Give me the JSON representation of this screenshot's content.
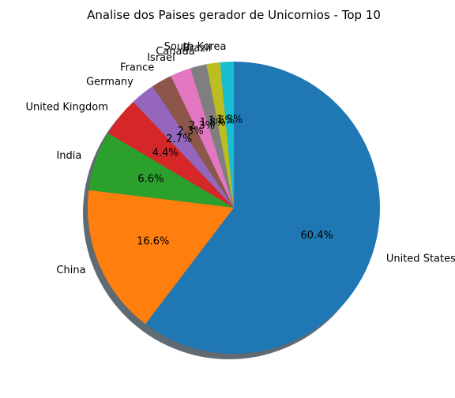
{
  "chart_data": {
    "type": "pie",
    "title": "Analise dos Paises gerador de Unicornios - Top 10",
    "labels": [
      "United States",
      "China",
      "India",
      "United Kingdom",
      "Germany",
      "France",
      "Israel",
      "Canada",
      "Brazil",
      "South Korea"
    ],
    "values": [
      60.4,
      16.6,
      6.6,
      4.4,
      2.7,
      2.3,
      2.3,
      1.8,
      1.5,
      1.5
    ],
    "value_labels": [
      "60.4%",
      "16.6%",
      "6.6%",
      "4.4%",
      "2.7%",
      "2.3%",
      "2.3%",
      "1.8%",
      "1.5%",
      "1.5%"
    ],
    "colors": [
      "#1f77b4",
      "#ff7f0e",
      "#2ca02c",
      "#d62728",
      "#9467bd",
      "#8c564b",
      "#e377c2",
      "#7f7f7f",
      "#bcbd22",
      "#17becf"
    ],
    "shadow_color": "#5f6a72",
    "start_angle": 90,
    "direction": "clockwise",
    "shadow": true
  }
}
